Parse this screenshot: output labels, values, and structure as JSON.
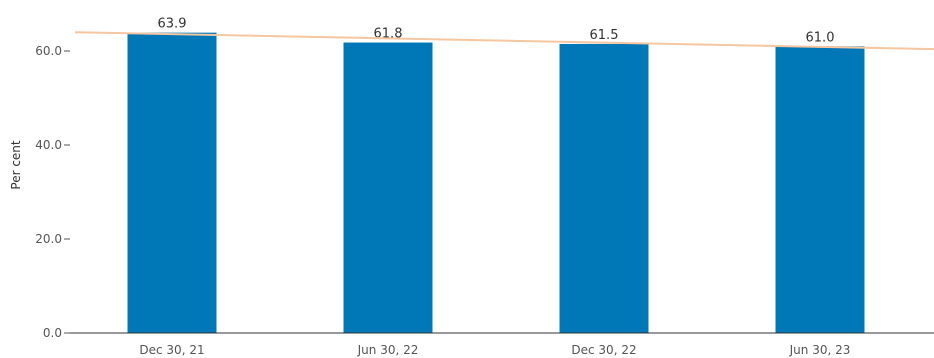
{
  "chart_data": {
    "type": "bar",
    "title": "",
    "xlabel": "",
    "ylabel": "Per cent",
    "categories": [
      "Dec 30, 21",
      "Jun 30, 22",
      "Dec 30, 22",
      "Jun 30, 23"
    ],
    "values": [
      63.9,
      61.8,
      61.5,
      61.0
    ],
    "data_labels": [
      "63.9",
      "61.8",
      "61.5",
      "61.0"
    ],
    "ylim": [
      0,
      66
    ],
    "yticks": [
      0,
      20,
      40,
      60
    ],
    "ytick_labels": [
      "0.0",
      "20.0",
      "40.0",
      "60.0"
    ],
    "grid": false,
    "legend": "none",
    "trendline": {
      "type": "linear",
      "start_value": 64.0,
      "end_value": 60.4,
      "color": "#f5c6a0"
    },
    "colors": {
      "bar": "#0077b6",
      "axis": "#333333",
      "tick_text": "#555555",
      "label_text": "#333333"
    }
  }
}
